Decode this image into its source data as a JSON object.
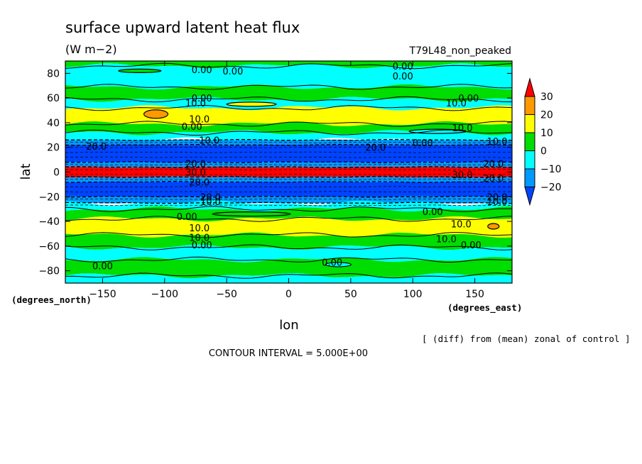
{
  "chart_data": {
    "type": "heatmap",
    "title": "surface upward latent heat flux",
    "units": "(W m−2)",
    "experiment": "T79L48_non_peaked",
    "xlabel": "lon",
    "ylabel": "lat",
    "x_unit_label": "(degrees_east)",
    "y_unit_label": "(degrees_north)",
    "xlim": [
      -180,
      180
    ],
    "ylim": [
      -90,
      90
    ],
    "x_ticks": [
      -150,
      -100,
      -50,
      0,
      50,
      100,
      150
    ],
    "y_ticks": [
      80,
      60,
      40,
      20,
      0,
      -20,
      -40,
      -60,
      -80
    ],
    "x_tick_labels": [
      "−150",
      "−100",
      "−50",
      "0",
      "50",
      "100",
      "150"
    ],
    "y_tick_labels": [
      "80",
      "60",
      "40",
      "20",
      "0",
      "−20",
      "−40",
      "−60",
      "−80"
    ],
    "colorbar": {
      "levels": [
        30,
        20,
        10,
        0,
        -10,
        -20
      ],
      "labels": [
        "30",
        "20",
        "10",
        "0",
        "−10",
        "−20"
      ],
      "colors": [
        "#ff0000",
        "#ff9900",
        "#ffff00",
        "#00dd00",
        "#00ffff",
        "#0099ff",
        "#0044ff"
      ]
    },
    "bands": [
      {
        "lat_from": 90,
        "lat_to": 86,
        "class": "green"
      },
      {
        "lat_from": 86,
        "lat_to": 69,
        "class": "cyan"
      },
      {
        "lat_from": 69,
        "lat_to": 59,
        "class": "green"
      },
      {
        "lat_from": 59,
        "lat_to": 52,
        "class": "cyan"
      },
      {
        "lat_from": 52,
        "lat_to": 39,
        "class": "yellow"
      },
      {
        "lat_from": 39,
        "lat_to": 32,
        "class": "green"
      },
      {
        "lat_from": 32,
        "lat_to": 26,
        "class": "cyan"
      },
      {
        "lat_from": 26,
        "lat_to": 22,
        "class": "blue1"
      },
      {
        "lat_from": 22,
        "lat_to": 8,
        "class": "blue2"
      },
      {
        "lat_from": 8,
        "lat_to": 4,
        "class": "blue1"
      },
      {
        "lat_from": 4,
        "lat_to": -4,
        "class": "red"
      },
      {
        "lat_from": -4,
        "lat_to": -8,
        "class": "blue1"
      },
      {
        "lat_from": -8,
        "lat_to": -20,
        "class": "blue2"
      },
      {
        "lat_from": -20,
        "lat_to": -25,
        "class": "blue1"
      },
      {
        "lat_from": -25,
        "lat_to": -30,
        "class": "cyan"
      },
      {
        "lat_from": -30,
        "lat_to": -38,
        "class": "green"
      },
      {
        "lat_from": -38,
        "lat_to": -51,
        "class": "yellow"
      },
      {
        "lat_from": -51,
        "lat_to": -61,
        "class": "green"
      },
      {
        "lat_from": -61,
        "lat_to": -71,
        "class": "cyan"
      },
      {
        "lat_from": -71,
        "lat_to": -84,
        "class": "green"
      },
      {
        "lat_from": -84,
        "lat_to": -90,
        "class": "cyan"
      }
    ],
    "contour_labels": [
      {
        "text": "0.00",
        "lon": -70,
        "lat": 83
      },
      {
        "text": "0.00",
        "lon": -45,
        "lat": 82
      },
      {
        "text": "0.00",
        "lon": 92,
        "lat": 86
      },
      {
        "text": "0.00",
        "lon": 92,
        "lat": 78
      },
      {
        "text": "0.00",
        "lon": -70,
        "lat": 60
      },
      {
        "text": "10.0",
        "lon": -75,
        "lat": 56
      },
      {
        "text": "0.00",
        "lon": 145,
        "lat": 60
      },
      {
        "text": "10.0",
        "lon": 135,
        "lat": 56
      },
      {
        "text": "10.0",
        "lon": -72,
        "lat": 43
      },
      {
        "text": "0.00",
        "lon": -78,
        "lat": 37
      },
      {
        "text": "10.0",
        "lon": 140,
        "lat": 36
      },
      {
        "text": "10.0",
        "lon": -64,
        "lat": 26
      },
      {
        "text": "20.0",
        "lon": -155,
        "lat": 21
      },
      {
        "text": "20.0",
        "lon": 70,
        "lat": 20
      },
      {
        "text": "0.00",
        "lon": 108,
        "lat": 24
      },
      {
        "text": "10.0",
        "lon": 168,
        "lat": 25
      },
      {
        "text": "20.0",
        "lon": 165,
        "lat": 7
      },
      {
        "text": "20.0",
        "lon": -75,
        "lat": 7
      },
      {
        "text": "30.0",
        "lon": -75,
        "lat": 0
      },
      {
        "text": "20.0",
        "lon": -72,
        "lat": -8
      },
      {
        "text": "30.0",
        "lon": 140,
        "lat": -2
      },
      {
        "text": "20.0",
        "lon": 165,
        "lat": -5
      },
      {
        "text": "20.0",
        "lon": -63,
        "lat": -20
      },
      {
        "text": "10.0",
        "lon": -63,
        "lat": -24
      },
      {
        "text": "20.0",
        "lon": 168,
        "lat": -20
      },
      {
        "text": "10.0",
        "lon": 168,
        "lat": -24
      },
      {
        "text": "0.00",
        "lon": -82,
        "lat": -36
      },
      {
        "text": "0.00",
        "lon": 116,
        "lat": -32
      },
      {
        "text": "10.0",
        "lon": -72,
        "lat": -45
      },
      {
        "text": "10.0",
        "lon": 139,
        "lat": -42
      },
      {
        "text": "10.0",
        "lon": -72,
        "lat": -53
      },
      {
        "text": "0.00",
        "lon": -70,
        "lat": -59
      },
      {
        "text": "10.0",
        "lon": 127,
        "lat": -54
      },
      {
        "text": "0.00",
        "lon": 147,
        "lat": -59
      },
      {
        "text": "0.00",
        "lon": -150,
        "lat": -76
      },
      {
        "text": "0.00",
        "lon": 35,
        "lat": -73
      }
    ],
    "note": "[ (diff) from (mean) zonal of control ]",
    "contour_interval": "CONTOUR INTERVAL = 5.000E+00"
  }
}
